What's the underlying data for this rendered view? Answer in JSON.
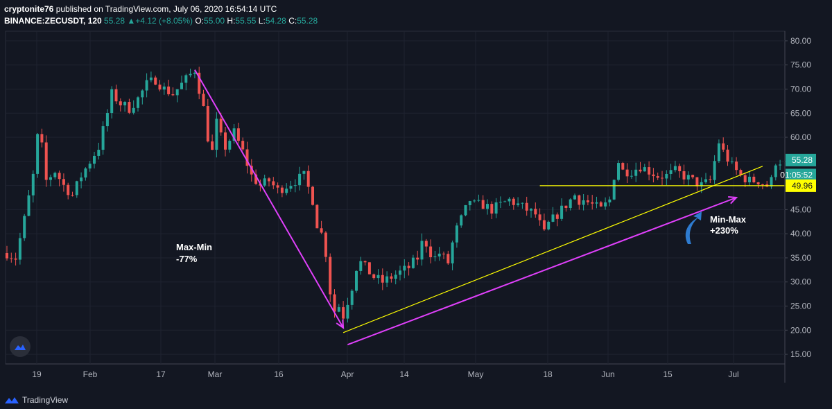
{
  "header": {
    "author": "cryptonite76",
    "published": "published on TradingView.com, July 06, 2020 16:54:14 UTC",
    "symbol": "BINANCE:ZECUSDT, 120",
    "last": "55.28",
    "change": "▲+4.12 (+8.05%)",
    "o_label": "O:",
    "o_value": "55.00",
    "h_label": "H:",
    "h_value": "55.55",
    "l_label": "L:",
    "l_value": "54.28",
    "c_label": "C:",
    "c_value": "55.28"
  },
  "footer": {
    "brand": "TradingView"
  },
  "colors": {
    "background": "#131722",
    "up": "#26a69a",
    "down": "#ef5350",
    "yellow": "#ffff00",
    "magenta": "#e040fb",
    "blue": "#2e7bcf"
  },
  "chart_data": {
    "type": "candlestick",
    "title": "BINANCE:ZECUSDT, 120",
    "ylim": [
      13,
      82
    ],
    "y_ticks": [
      "80.00",
      "75.00",
      "70.00",
      "65.00",
      "60.00",
      "55.00",
      "50.00",
      "45.00",
      "40.00",
      "35.00",
      "30.00",
      "25.00",
      "20.00",
      "15.00"
    ],
    "x_ticks": [
      "19",
      "Feb",
      "17",
      "Mar",
      "16",
      "Apr",
      "14",
      "May",
      "18",
      "Jun",
      "15",
      "Jul"
    ],
    "price_labels": {
      "last": "55.28",
      "countdown": "01:05:52",
      "support": "49.96"
    },
    "price_anchors": [
      [
        0,
        36
      ],
      [
        2,
        35
      ],
      [
        4,
        43
      ],
      [
        6,
        52
      ],
      [
        7,
        60
      ],
      [
        8,
        58
      ],
      [
        9,
        51
      ],
      [
        11,
        53
      ],
      [
        13,
        50
      ],
      [
        15,
        48
      ],
      [
        17,
        52
      ],
      [
        19,
        55
      ],
      [
        21,
        58
      ],
      [
        23,
        65
      ],
      [
        24,
        69
      ],
      [
        26,
        67
      ],
      [
        28,
        66
      ],
      [
        30,
        68
      ],
      [
        32,
        71
      ],
      [
        34,
        72
      ],
      [
        36,
        70
      ],
      [
        38,
        69
      ],
      [
        40,
        71
      ],
      [
        42,
        73
      ],
      [
        43,
        74
      ],
      [
        44,
        70
      ],
      [
        45,
        66
      ],
      [
        46,
        60
      ],
      [
        47,
        57
      ],
      [
        48,
        63
      ],
      [
        49,
        60
      ],
      [
        50,
        58
      ],
      [
        52,
        61
      ],
      [
        54,
        57
      ],
      [
        56,
        52
      ],
      [
        58,
        50
      ],
      [
        60,
        51
      ],
      [
        62,
        49
      ],
      [
        64,
        50
      ],
      [
        66,
        51
      ],
      [
        68,
        52
      ],
      [
        70,
        47
      ],
      [
        71,
        42
      ],
      [
        72,
        40
      ],
      [
        73,
        36
      ],
      [
        74,
        28
      ],
      [
        75,
        24
      ],
      [
        76,
        25
      ],
      [
        77,
        23
      ],
      [
        78,
        26
      ],
      [
        79,
        29
      ],
      [
        80,
        33
      ],
      [
        81,
        34
      ],
      [
        82,
        33
      ],
      [
        84,
        31
      ],
      [
        86,
        30
      ],
      [
        88,
        31
      ],
      [
        90,
        32
      ],
      [
        92,
        33
      ],
      [
        94,
        35
      ],
      [
        95,
        38
      ],
      [
        96,
        38
      ],
      [
        97,
        36
      ],
      [
        98,
        35
      ],
      [
        99,
        36
      ],
      [
        100,
        35
      ],
      [
        101,
        34
      ],
      [
        102,
        38
      ],
      [
        103,
        41
      ],
      [
        104,
        43
      ],
      [
        105,
        45
      ],
      [
        106,
        47
      ],
      [
        107,
        46
      ],
      [
        109,
        46
      ],
      [
        111,
        45
      ],
      [
        113,
        46
      ],
      [
        115,
        47
      ],
      [
        117,
        46
      ],
      [
        119,
        45
      ],
      [
        121,
        44
      ],
      [
        122,
        42
      ],
      [
        123,
        40
      ],
      [
        124,
        42
      ],
      [
        126,
        44
      ],
      [
        128,
        46
      ],
      [
        130,
        48
      ],
      [
        131,
        47
      ],
      [
        132,
        47
      ],
      [
        134,
        46
      ],
      [
        136,
        45
      ],
      [
        138,
        47
      ],
      [
        139,
        52
      ],
      [
        140,
        55
      ],
      [
        141,
        53
      ],
      [
        143,
        53
      ],
      [
        145,
        54
      ],
      [
        147,
        53
      ],
      [
        149,
        52
      ],
      [
        151,
        52
      ],
      [
        153,
        53
      ],
      [
        155,
        52
      ],
      [
        157,
        51
      ],
      [
        159,
        50
      ],
      [
        161,
        51
      ],
      [
        162,
        55
      ],
      [
        163,
        59
      ],
      [
        164,
        57
      ],
      [
        166,
        54
      ],
      [
        168,
        52
      ],
      [
        170,
        51
      ],
      [
        172,
        51
      ],
      [
        174,
        50
      ],
      [
        175,
        51
      ],
      [
        176,
        55
      ]
    ],
    "annotations": [
      {
        "text": "Max-Min",
        "text2": "-77%",
        "color": "#ffffff"
      },
      {
        "text": "Min-Max",
        "text2": "+230%",
        "color": "#ffffff"
      }
    ],
    "trendlines": [
      {
        "name": "magenta-max-min",
        "color": "#e040fb",
        "from": [
          43,
          74
        ],
        "to": [
          77,
          20.5
        ]
      },
      {
        "name": "magenta-min-max",
        "color": "#e040fb",
        "from": [
          78,
          17
        ],
        "to": [
          167,
          47.5
        ]
      },
      {
        "name": "yellow-support-trend",
        "color": "#ffff00",
        "from": [
          77,
          19.5
        ],
        "to": [
          173,
          54
        ]
      },
      {
        "name": "yellow-horizontal",
        "color": "#ffff00",
        "from": [
          122,
          49.96
        ],
        "to": [
          178,
          49.96
        ]
      }
    ]
  }
}
